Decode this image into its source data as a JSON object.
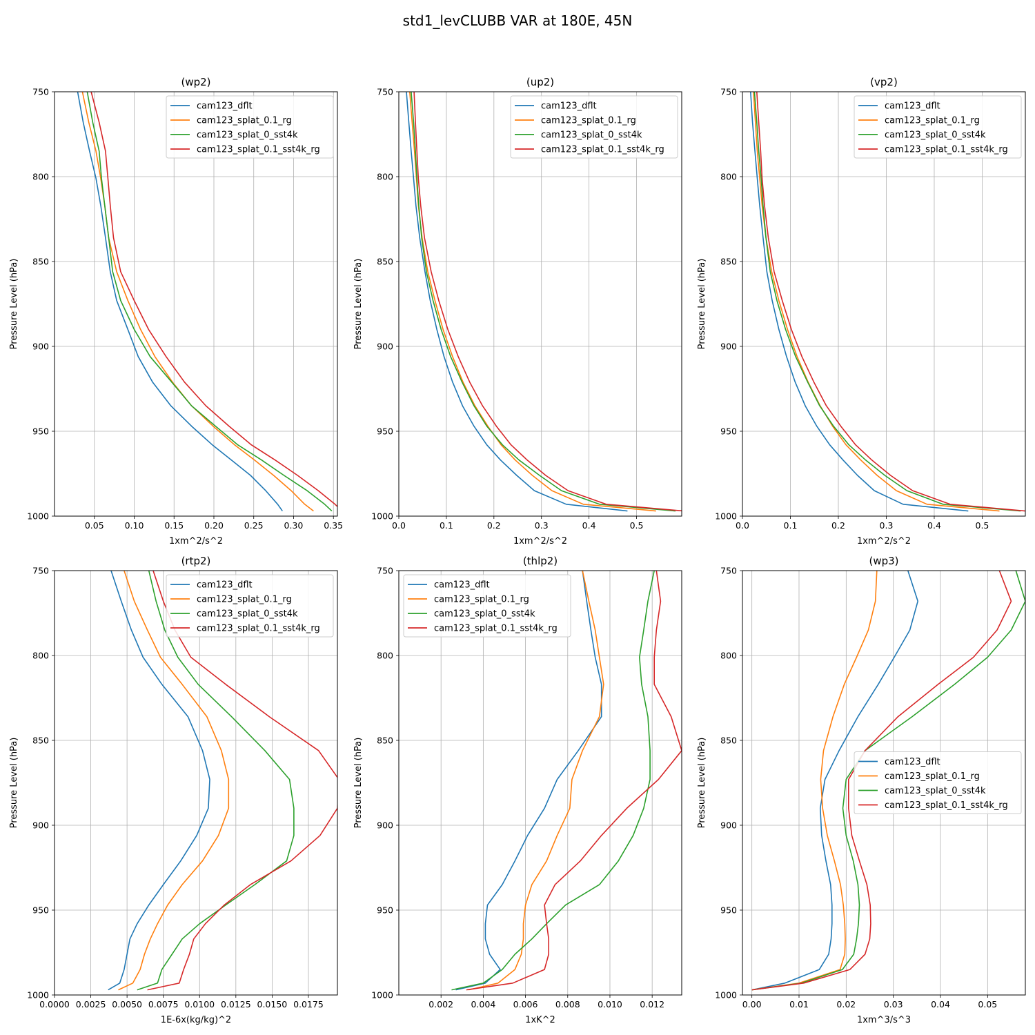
{
  "title": "std1_levCLUBB VAR at 180E, 45N",
  "series_names": [
    "cam123_dflt",
    "cam123_splat_0.1_rg",
    "cam123_splat_0_sst4k",
    "cam123_splat_0.1_sst4k_rg"
  ],
  "colors": {
    "cam123_dflt": "#1f77b4",
    "cam123_splat_0.1_rg": "#ff7f0e",
    "cam123_splat_0_sst4k": "#2ca02c",
    "cam123_splat_0.1_sst4k_rg": "#d62728"
  },
  "chart_data": [
    {
      "type": "line",
      "title": "(wp2)",
      "xlabel": "1xm^2/s^2",
      "ylabel": "Pressure Level (hPa)",
      "xlim": [
        0.0,
        0.355
      ],
      "ylim": [
        1000,
        750
      ],
      "xticks": [
        0.05,
        0.1,
        0.15,
        0.2,
        0.25,
        0.3,
        0.35
      ],
      "xtick_labels": [
        "0.05",
        "0.10",
        "0.15",
        "0.20",
        "0.25",
        "0.30",
        "0.35"
      ],
      "yticks": [
        750,
        800,
        850,
        900,
        950,
        1000
      ],
      "legend": "upper right",
      "pressure": [
        750,
        768,
        785,
        801,
        817,
        836,
        856,
        873,
        890,
        906,
        921,
        935,
        947,
        958,
        967,
        976,
        985,
        993,
        997
      ],
      "series": [
        {
          "name": "cam123_dflt",
          "values": [
            0.029,
            0.036,
            0.044,
            0.052,
            0.058,
            0.064,
            0.07,
            0.078,
            0.092,
            0.105,
            0.123,
            0.146,
            0.172,
            0.198,
            0.222,
            0.246,
            0.265,
            0.28,
            0.286
          ]
        },
        {
          "name": "cam123_splat_0.1_rg",
          "values": [
            0.035,
            0.043,
            0.052,
            0.058,
            0.063,
            0.068,
            0.078,
            0.092,
            0.108,
            0.126,
            0.148,
            0.172,
            0.199,
            0.226,
            0.251,
            0.275,
            0.297,
            0.314,
            0.325
          ]
        },
        {
          "name": "cam123_splat_0_sst4k",
          "values": [
            0.041,
            0.048,
            0.056,
            0.059,
            0.063,
            0.068,
            0.073,
            0.083,
            0.1,
            0.12,
            0.147,
            0.172,
            0.202,
            0.23,
            0.26,
            0.288,
            0.317,
            0.339,
            0.348
          ]
        },
        {
          "name": "cam123_splat_0.1_sst4k_rg",
          "values": [
            0.046,
            0.056,
            0.064,
            0.067,
            0.07,
            0.074,
            0.083,
            0.1,
            0.118,
            0.14,
            0.163,
            0.19,
            0.219,
            0.247,
            0.277,
            0.305,
            0.331,
            0.352,
            0.361
          ]
        }
      ]
    },
    {
      "type": "line",
      "title": "(up2)",
      "xlabel": "1xm^2/s^2",
      "ylabel": "Pressure Level (hPa)",
      "xlim": [
        0.0,
        0.595
      ],
      "ylim": [
        1000,
        750
      ],
      "xticks": [
        0.0,
        0.1,
        0.2,
        0.3,
        0.4,
        0.5
      ],
      "xtick_labels": [
        "0.0",
        "0.1",
        "0.2",
        "0.3",
        "0.4",
        "0.5"
      ],
      "yticks": [
        750,
        800,
        850,
        900,
        950,
        1000
      ],
      "legend": "upper right",
      "pressure": [
        750,
        768,
        785,
        801,
        817,
        836,
        856,
        873,
        890,
        906,
        921,
        935,
        947,
        958,
        967,
        976,
        985,
        993,
        997
      ],
      "series": [
        {
          "name": "cam123_dflt",
          "values": [
            0.016,
            0.021,
            0.026,
            0.031,
            0.036,
            0.044,
            0.055,
            0.066,
            0.08,
            0.095,
            0.113,
            0.134,
            0.158,
            0.185,
            0.214,
            0.248,
            0.285,
            0.352,
            0.481
          ]
        },
        {
          "name": "cam123_splat_0.1_rg",
          "values": [
            0.023,
            0.028,
            0.033,
            0.037,
            0.041,
            0.049,
            0.061,
            0.076,
            0.093,
            0.113,
            0.135,
            0.16,
            0.187,
            0.215,
            0.245,
            0.281,
            0.322,
            0.388,
            0.541
          ]
        },
        {
          "name": "cam123_splat_0_sst4k",
          "values": [
            0.026,
            0.031,
            0.035,
            0.038,
            0.042,
            0.048,
            0.058,
            0.072,
            0.089,
            0.109,
            0.133,
            0.158,
            0.185,
            0.218,
            0.253,
            0.296,
            0.342,
            0.422,
            0.582
          ]
        },
        {
          "name": "cam123_splat_0.1_sst4k_rg",
          "values": [
            0.032,
            0.035,
            0.038,
            0.041,
            0.046,
            0.054,
            0.068,
            0.084,
            0.103,
            0.125,
            0.149,
            0.176,
            0.205,
            0.236,
            0.27,
            0.309,
            0.356,
            0.436,
            0.6
          ]
        }
      ]
    },
    {
      "type": "line",
      "title": "(vp2)",
      "xlabel": "1xm^2/s^2",
      "ylabel": "Pressure Level (hPa)",
      "xlim": [
        0.0,
        0.59
      ],
      "ylim": [
        1000,
        750
      ],
      "xticks": [
        0.0,
        0.1,
        0.2,
        0.3,
        0.4,
        0.5
      ],
      "xtick_labels": [
        "0.0",
        "0.1",
        "0.2",
        "0.3",
        "0.4",
        "0.5"
      ],
      "yticks": [
        750,
        800,
        850,
        900,
        950,
        1000
      ],
      "legend": "upper right",
      "pressure": [
        750,
        768,
        785,
        801,
        817,
        836,
        856,
        873,
        890,
        906,
        921,
        935,
        947,
        958,
        967,
        976,
        985,
        993,
        997
      ],
      "series": [
        {
          "name": "cam123_dflt",
          "values": [
            0.017,
            0.021,
            0.026,
            0.031,
            0.036,
            0.043,
            0.051,
            0.062,
            0.076,
            0.092,
            0.11,
            0.131,
            0.155,
            0.182,
            0.21,
            0.24,
            0.275,
            0.335,
            0.471
          ]
        },
        {
          "name": "cam123_splat_0.1_rg",
          "values": [
            0.023,
            0.027,
            0.031,
            0.036,
            0.041,
            0.049,
            0.061,
            0.076,
            0.094,
            0.114,
            0.137,
            0.162,
            0.188,
            0.216,
            0.247,
            0.281,
            0.321,
            0.385,
            0.536
          ]
        },
        {
          "name": "cam123_splat_0_sst4k",
          "values": [
            0.025,
            0.03,
            0.034,
            0.039,
            0.043,
            0.049,
            0.058,
            0.072,
            0.09,
            0.111,
            0.136,
            0.161,
            0.19,
            0.222,
            0.257,
            0.297,
            0.343,
            0.418,
            0.58
          ]
        },
        {
          "name": "cam123_splat_0.1_sst4k_rg",
          "values": [
            0.03,
            0.034,
            0.038,
            0.041,
            0.046,
            0.054,
            0.066,
            0.083,
            0.102,
            0.124,
            0.149,
            0.175,
            0.205,
            0.236,
            0.27,
            0.309,
            0.355,
            0.433,
            0.59
          ]
        }
      ]
    },
    {
      "type": "line",
      "title": "(rtp2)",
      "xlabel": "1E-6x(kg/kg)^2",
      "ylabel": "Pressure Level (hPa)",
      "xlim": [
        0.0,
        0.0195
      ],
      "ylim": [
        1000,
        750
      ],
      "xticks": [
        0.0,
        0.0025,
        0.005,
        0.0075,
        0.01,
        0.0125,
        0.015,
        0.0175
      ],
      "xtick_labels": [
        "0.0000",
        "0.0025",
        "0.0050",
        "0.0075",
        "0.0100",
        "0.0125",
        "0.0150",
        "0.0175"
      ],
      "yticks": [
        750,
        800,
        850,
        900,
        950,
        1000
      ],
      "legend": "upper right",
      "pressure": [
        750,
        768,
        785,
        801,
        817,
        836,
        856,
        873,
        890,
        906,
        921,
        935,
        947,
        958,
        967,
        976,
        985,
        993,
        997
      ],
      "series": [
        {
          "name": "cam123_dflt",
          "values": [
            0.0039,
            0.0046,
            0.0053,
            0.0061,
            0.0074,
            0.0092,
            0.0102,
            0.0107,
            0.0106,
            0.0098,
            0.0087,
            0.0075,
            0.0065,
            0.0057,
            0.0052,
            0.005,
            0.0048,
            0.0045,
            0.0037
          ]
        },
        {
          "name": "cam123_splat_0.1_rg",
          "values": [
            0.0048,
            0.0055,
            0.0064,
            0.0073,
            0.0088,
            0.0105,
            0.0115,
            0.012,
            0.012,
            0.0113,
            0.0102,
            0.0088,
            0.0078,
            0.0071,
            0.0066,
            0.0062,
            0.0059,
            0.0054,
            0.0044
          ]
        },
        {
          "name": "cam123_splat_0_sst4k",
          "values": [
            0.0065,
            0.007,
            0.0076,
            0.0085,
            0.0099,
            0.0122,
            0.0145,
            0.0162,
            0.0165,
            0.0165,
            0.016,
            0.0138,
            0.0118,
            0.01,
            0.0088,
            0.0081,
            0.0074,
            0.0071,
            0.0057
          ]
        },
        {
          "name": "cam123_splat_0.1_sst4k_rg",
          "values": [
            0.0068,
            0.0075,
            0.0083,
            0.0094,
            0.0118,
            0.0148,
            0.0182,
            0.0196,
            0.0195,
            0.0183,
            0.0163,
            0.0135,
            0.0117,
            0.0104,
            0.0096,
            0.0093,
            0.0089,
            0.0086,
            0.0064
          ]
        }
      ]
    },
    {
      "type": "line",
      "title": "(thlp2)",
      "xlabel": "1xK^2",
      "ylabel": "Pressure Level (hPa)",
      "xlim": [
        0.0,
        0.0134
      ],
      "ylim": [
        1000,
        750
      ],
      "xticks": [
        0.002,
        0.004,
        0.006,
        0.008,
        0.01,
        0.012
      ],
      "xtick_labels": [
        "0.002",
        "0.004",
        "0.006",
        "0.008",
        "0.010",
        "0.012"
      ],
      "yticks": [
        750,
        800,
        850,
        900,
        950,
        1000
      ],
      "legend": "upper left",
      "pressure": [
        750,
        768,
        785,
        801,
        817,
        836,
        856,
        873,
        890,
        906,
        921,
        935,
        947,
        958,
        967,
        976,
        985,
        993,
        997
      ],
      "series": [
        {
          "name": "cam123_dflt",
          "values": [
            0.0087,
            0.0089,
            0.0091,
            0.0093,
            0.0096,
            0.0096,
            0.0085,
            0.0075,
            0.0069,
            0.0061,
            0.0055,
            0.0049,
            0.0042,
            0.0041,
            0.0041,
            0.0043,
            0.0048,
            0.0041,
            0.0027
          ]
        },
        {
          "name": "cam123_splat_0.1_rg",
          "values": [
            0.0087,
            0.009,
            0.0093,
            0.0095,
            0.0097,
            0.0095,
            0.0087,
            0.0082,
            0.0081,
            0.0075,
            0.007,
            0.0063,
            0.006,
            0.0059,
            0.0059,
            0.0058,
            0.0055,
            0.0047,
            0.0033
          ]
        },
        {
          "name": "cam123_splat_0_sst4k",
          "values": [
            0.0121,
            0.0118,
            0.0116,
            0.0114,
            0.0115,
            0.0118,
            0.0119,
            0.0119,
            0.0116,
            0.0111,
            0.0104,
            0.0095,
            0.0079,
            0.007,
            0.0063,
            0.0055,
            0.0049,
            0.004,
            0.0025
          ]
        },
        {
          "name": "cam123_splat_0.1_sst4k_rg",
          "values": [
            0.0122,
            0.0124,
            0.0122,
            0.0121,
            0.0121,
            0.0129,
            0.0134,
            0.0123,
            0.0108,
            0.0096,
            0.0086,
            0.0074,
            0.0069,
            0.007,
            0.0071,
            0.0071,
            0.0069,
            0.0054,
            0.0032
          ]
        }
      ]
    },
    {
      "type": "line",
      "title": "(wp3)",
      "xlabel": "1xm^3/s^3",
      "ylabel": "Pressure Level (hPa)",
      "xlim": [
        -0.002,
        0.058
      ],
      "ylim": [
        1000,
        750
      ],
      "xticks": [
        0.0,
        0.01,
        0.02,
        0.03,
        0.04,
        0.05
      ],
      "xtick_labels": [
        "0.00",
        "0.01",
        "0.02",
        "0.03",
        "0.04",
        "0.05"
      ],
      "yticks": [
        750,
        800,
        850,
        900,
        950,
        1000
      ],
      "legend": "center right",
      "pressure": [
        750,
        768,
        785,
        801,
        817,
        836,
        856,
        873,
        890,
        906,
        921,
        935,
        947,
        958,
        967,
        976,
        985,
        993,
        997
      ],
      "series": [
        {
          "name": "cam123_dflt",
          "values": [
            0.0331,
            0.0352,
            0.0335,
            0.0302,
            0.0268,
            0.0225,
            0.0185,
            0.0155,
            0.0145,
            0.0148,
            0.0157,
            0.0167,
            0.017,
            0.017,
            0.0168,
            0.0163,
            0.0143,
            0.007,
            0.0
          ]
        },
        {
          "name": "cam123_splat_0.1_rg",
          "values": [
            0.0265,
            0.0262,
            0.0247,
            0.0222,
            0.0196,
            0.0172,
            0.0152,
            0.0146,
            0.015,
            0.016,
            0.0175,
            0.0188,
            0.0194,
            0.0197,
            0.0198,
            0.0197,
            0.0187,
            0.01,
            0.0
          ]
        },
        {
          "name": "cam123_splat_0_sst4k",
          "values": [
            0.056,
            0.058,
            0.055,
            0.05,
            0.043,
            0.034,
            0.024,
            0.02,
            0.0193,
            0.02,
            0.0215,
            0.0225,
            0.0228,
            0.0226,
            0.0222,
            0.0216,
            0.0192,
            0.0105,
            0.0
          ]
        },
        {
          "name": "cam123_splat_0.1_sst4k_rg",
          "values": [
            0.0525,
            0.055,
            0.052,
            0.047,
            0.0395,
            0.031,
            0.024,
            0.0205,
            0.0205,
            0.0212,
            0.0228,
            0.0244,
            0.0251,
            0.0252,
            0.025,
            0.024,
            0.0208,
            0.011,
            0.0
          ]
        }
      ]
    }
  ]
}
